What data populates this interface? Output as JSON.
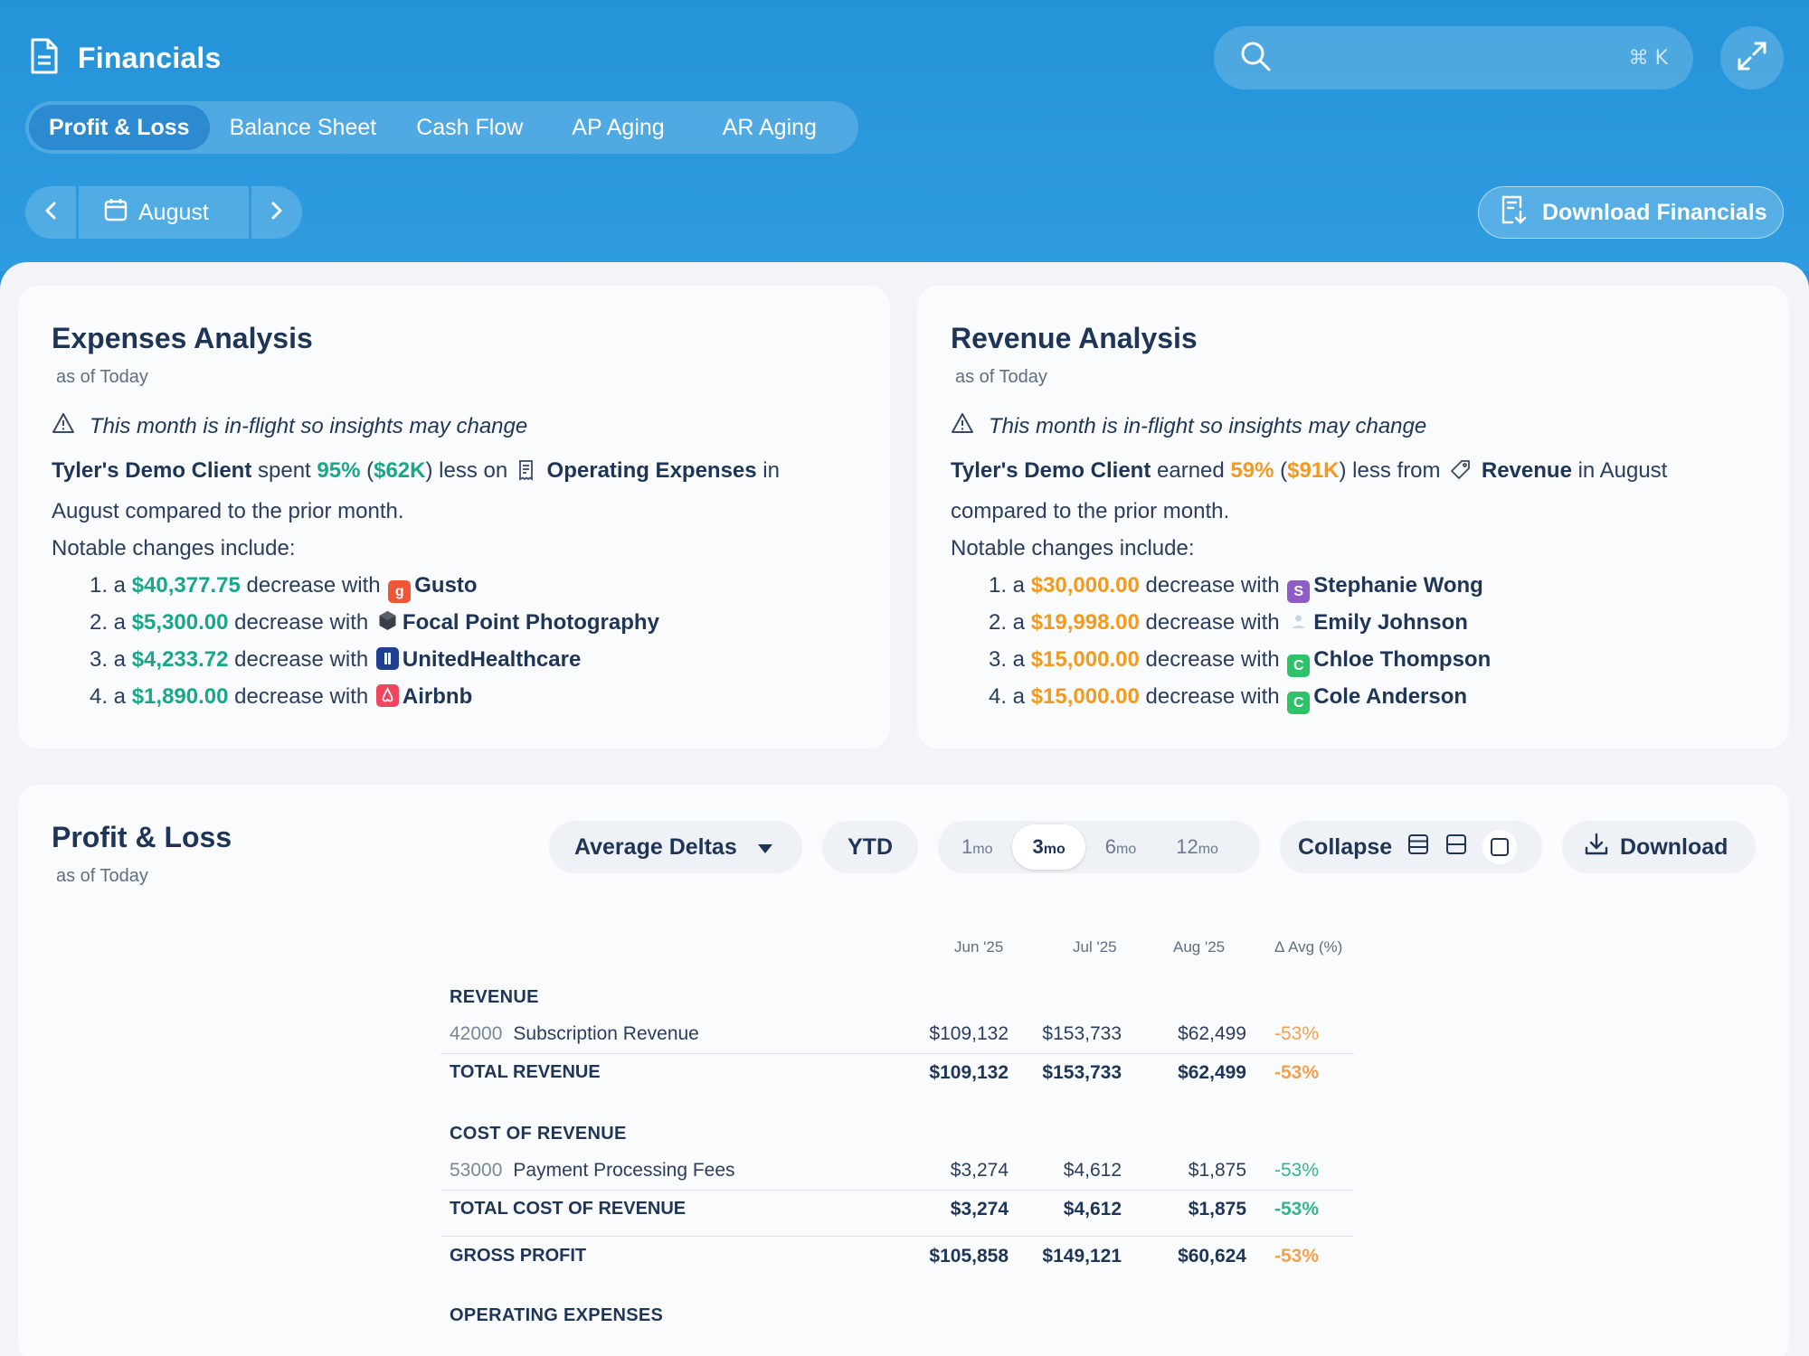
{
  "app": {
    "title": "Financials"
  },
  "search": {
    "placeholder": "",
    "shortcut": "⌘ K"
  },
  "tabs": [
    "Profit & Loss",
    "Balance Sheet",
    "Cash Flow",
    "AP Aging",
    "AR Aging"
  ],
  "month_nav": {
    "month": "August"
  },
  "download_financials": "Download Financials",
  "expenses": {
    "title": "Expenses Analysis",
    "asof": "as of Today",
    "warning": "This month is in-flight so insights may change",
    "client": "Tyler's Demo Client",
    "verb": "spent",
    "pct": "95%",
    "amt": "$62K",
    "mid": "less on",
    "category": "Operating Expenses",
    "tail": "in August compared to the prior month.",
    "notable": "Notable changes include:",
    "items": [
      {
        "num": "1. a",
        "amount": "$40,377.75",
        "text": "decrease with",
        "vendor": "Gusto",
        "logo_color": "#f0553a",
        "logo_letter": "g"
      },
      {
        "num": "2. a",
        "amount": "$5,300.00",
        "text": "decrease with",
        "vendor": "Focal Point Photography",
        "logo_color": "#3a3f47",
        "logo_letter": ""
      },
      {
        "num": "3. a",
        "amount": "$4,233.72",
        "text": "decrease with",
        "vendor": "UnitedHealthcare",
        "logo_color": "#1f3f8f",
        "logo_letter": ""
      },
      {
        "num": "4. a",
        "amount": "$1,890.00",
        "text": "decrease with",
        "vendor": "Airbnb",
        "logo_color": "#f0455e",
        "logo_letter": "♁"
      }
    ]
  },
  "revenue": {
    "title": "Revenue Analysis",
    "asof": "as of Today",
    "warning": "This month is in-flight so insights may change",
    "client": "Tyler's Demo Client",
    "verb": "earned",
    "pct": "59%",
    "amt": "$91K",
    "mid": "less from",
    "category": "Revenue",
    "tail": "in August compared to the prior month.",
    "notable": "Notable changes include:",
    "items": [
      {
        "num": "1. a",
        "amount": "$30,000.00",
        "text": "decrease with",
        "vendor": "Stephanie Wong",
        "logo_color": "#8e5cc4",
        "logo_letter": "S"
      },
      {
        "num": "2. a",
        "amount": "$19,998.00",
        "text": "decrease with",
        "vendor": "Emily Johnson",
        "logo_color": "#e8eef2",
        "logo_letter": ""
      },
      {
        "num": "3. a",
        "amount": "$15,000.00",
        "text": "decrease with",
        "vendor": "Chloe Thompson",
        "logo_color": "#2ec26a",
        "logo_letter": "C"
      },
      {
        "num": "4. a",
        "amount": "$15,000.00",
        "text": "decrease with",
        "vendor": "Cole Anderson",
        "logo_color": "#2ec26a",
        "logo_letter": "C"
      }
    ]
  },
  "pl": {
    "title": "Profit & Loss",
    "asof": "as of Today",
    "avg_deltas": "Average Deltas",
    "ytd": "YTD",
    "ranges": [
      {
        "n": "1",
        "u": "mo"
      },
      {
        "n": "3",
        "u": "mo"
      },
      {
        "n": "6",
        "u": "mo"
      },
      {
        "n": "12",
        "u": "mo"
      }
    ],
    "collapse": "Collapse",
    "download": "Download",
    "columns": [
      "Jun '25",
      "Jul '25",
      "Aug '25",
      "Δ Avg (%)"
    ],
    "rows": {
      "revenue_h": "REVENUE",
      "sub_rev": {
        "acct": "42000",
        "name": "Subscription Revenue",
        "v": [
          "$109,132",
          "$153,733",
          "$62,499",
          "-53%"
        ]
      },
      "total_rev": {
        "name": "TOTAL REVENUE",
        "v": [
          "$109,132",
          "$153,733",
          "$62,499",
          "-53%"
        ]
      },
      "cor_h": "COST OF REVENUE",
      "ppf": {
        "acct": "53000",
        "name": "Payment Processing Fees",
        "v": [
          "$3,274",
          "$4,612",
          "$1,875",
          "-53%"
        ]
      },
      "total_cor": {
        "name": "TOTAL COST OF REVENUE",
        "v": [
          "$3,274",
          "$4,612",
          "$1,875",
          "-53%"
        ]
      },
      "gross": {
        "name": "GROSS PROFIT",
        "v": [
          "$105,858",
          "$149,121",
          "$60,624",
          "-53%"
        ]
      },
      "opex_h": "OPERATING EXPENSES"
    }
  },
  "colors": {
    "header": "#2593d8",
    "positive_green": "#17a889",
    "negative_orange": "#f39a1e"
  }
}
